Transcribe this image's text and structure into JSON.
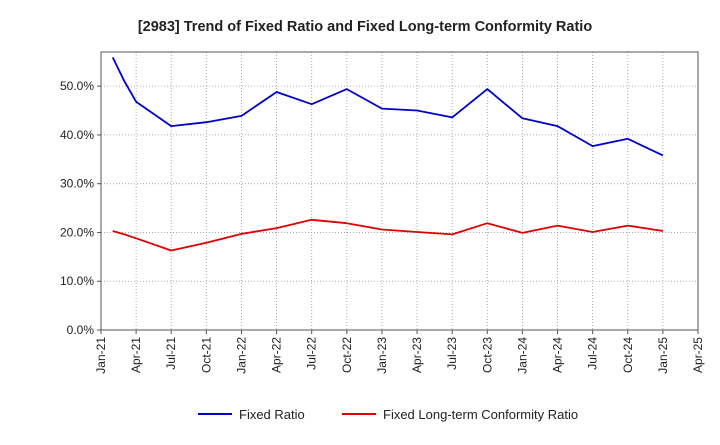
{
  "chart_data": {
    "type": "line",
    "title": "[2983]  Trend of Fixed Ratio and Fixed Long-term Conformity Ratio",
    "xlabel": "",
    "ylabel": "",
    "x_tick_labels": [
      "Jan-21",
      "Apr-21",
      "Jul-21",
      "Oct-21",
      "Jan-22",
      "Apr-22",
      "Jul-22",
      "Oct-22",
      "Jan-23",
      "Apr-23",
      "Jul-23",
      "Oct-23",
      "Jan-24",
      "Apr-24",
      "Jul-24",
      "Oct-24",
      "Jan-25",
      "Apr-25"
    ],
    "y_tick_labels": [
      "0.0%",
      "10.0%",
      "20.0%",
      "30.0%",
      "40.0%",
      "50.0%"
    ],
    "ylim": [
      0,
      57
    ],
    "grid": "dotted",
    "legend_position": "bottom",
    "x": [
      "Feb-21",
      "Mar-21",
      "Apr-21",
      "Jul-21",
      "Oct-21",
      "Jan-22",
      "Apr-22",
      "Jul-22",
      "Oct-22",
      "Jan-23",
      "Apr-23",
      "Jul-23",
      "Oct-23",
      "Jan-24",
      "Apr-24",
      "Jul-24",
      "Oct-24",
      "Jan-25"
    ],
    "series": [
      {
        "name": "Fixed Ratio",
        "color": "#0000cc",
        "values": [
          55.9,
          51.0,
          46.8,
          41.8,
          42.6,
          43.9,
          48.8,
          46.3,
          49.4,
          45.4,
          45.0,
          43.6,
          49.4,
          43.4,
          41.8,
          37.7,
          39.2,
          35.8
        ]
      },
      {
        "name": "Fixed Long-term Conformity Ratio",
        "color": "#e00000",
        "values": [
          20.3,
          19.6,
          18.8,
          16.3,
          17.9,
          19.7,
          20.9,
          22.6,
          21.9,
          20.6,
          20.1,
          19.6,
          21.9,
          19.9,
          21.4,
          20.1,
          21.4,
          20.3
        ]
      }
    ]
  }
}
